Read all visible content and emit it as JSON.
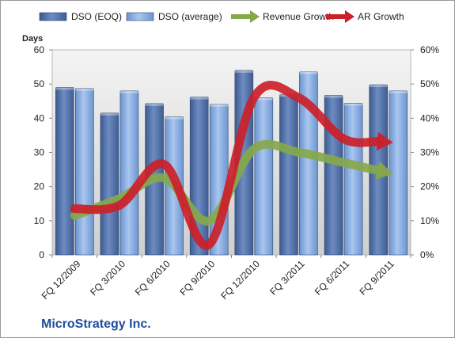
{
  "chart_data": {
    "type": "bar",
    "categories": [
      "FQ 12/2009",
      "FQ 3/2010",
      "FQ 6/2010",
      "FQ 9/2010",
      "FQ 12/2010",
      "FQ 3/2011",
      "FQ 6/2011",
      "FQ 9/2011"
    ],
    "series": [
      {
        "name": "DSO (EOQ)",
        "type": "bar",
        "axis": "left",
        "values": [
          49,
          41.5,
          44.3,
          46.2,
          54,
          47,
          46.7,
          49.8
        ],
        "color": "#4f6fa6"
      },
      {
        "name": "DSO (average)",
        "type": "bar",
        "axis": "left",
        "values": [
          48.7,
          48,
          40.4,
          44.1,
          46,
          53.6,
          44.4,
          48
        ],
        "color": "#7fa6dc"
      },
      {
        "name": "Revenue Growth",
        "type": "line",
        "axis": "right",
        "values": [
          0.115,
          0.165,
          0.225,
          0.1,
          0.31,
          0.3,
          0.27,
          0.24
        ],
        "color": "#86a84c"
      },
      {
        "name": "AR Growth",
        "type": "line",
        "axis": "right",
        "values": [
          0.135,
          0.145,
          0.265,
          0.03,
          0.46,
          0.46,
          0.34,
          0.33
        ],
        "color": "#cc2029"
      }
    ],
    "ylabel": "Days",
    "ylim": [
      0,
      60
    ],
    "y_ticks": [
      "0",
      "10",
      "20",
      "30",
      "40",
      "50",
      "60"
    ],
    "y2lim": [
      0,
      0.6
    ],
    "y2_ticks": [
      "0%",
      "10%",
      "20%",
      "30%",
      "40%",
      "50%",
      "60%"
    ],
    "grid": false,
    "legend_position": "top"
  },
  "company_name": "MicroStrategy Inc."
}
